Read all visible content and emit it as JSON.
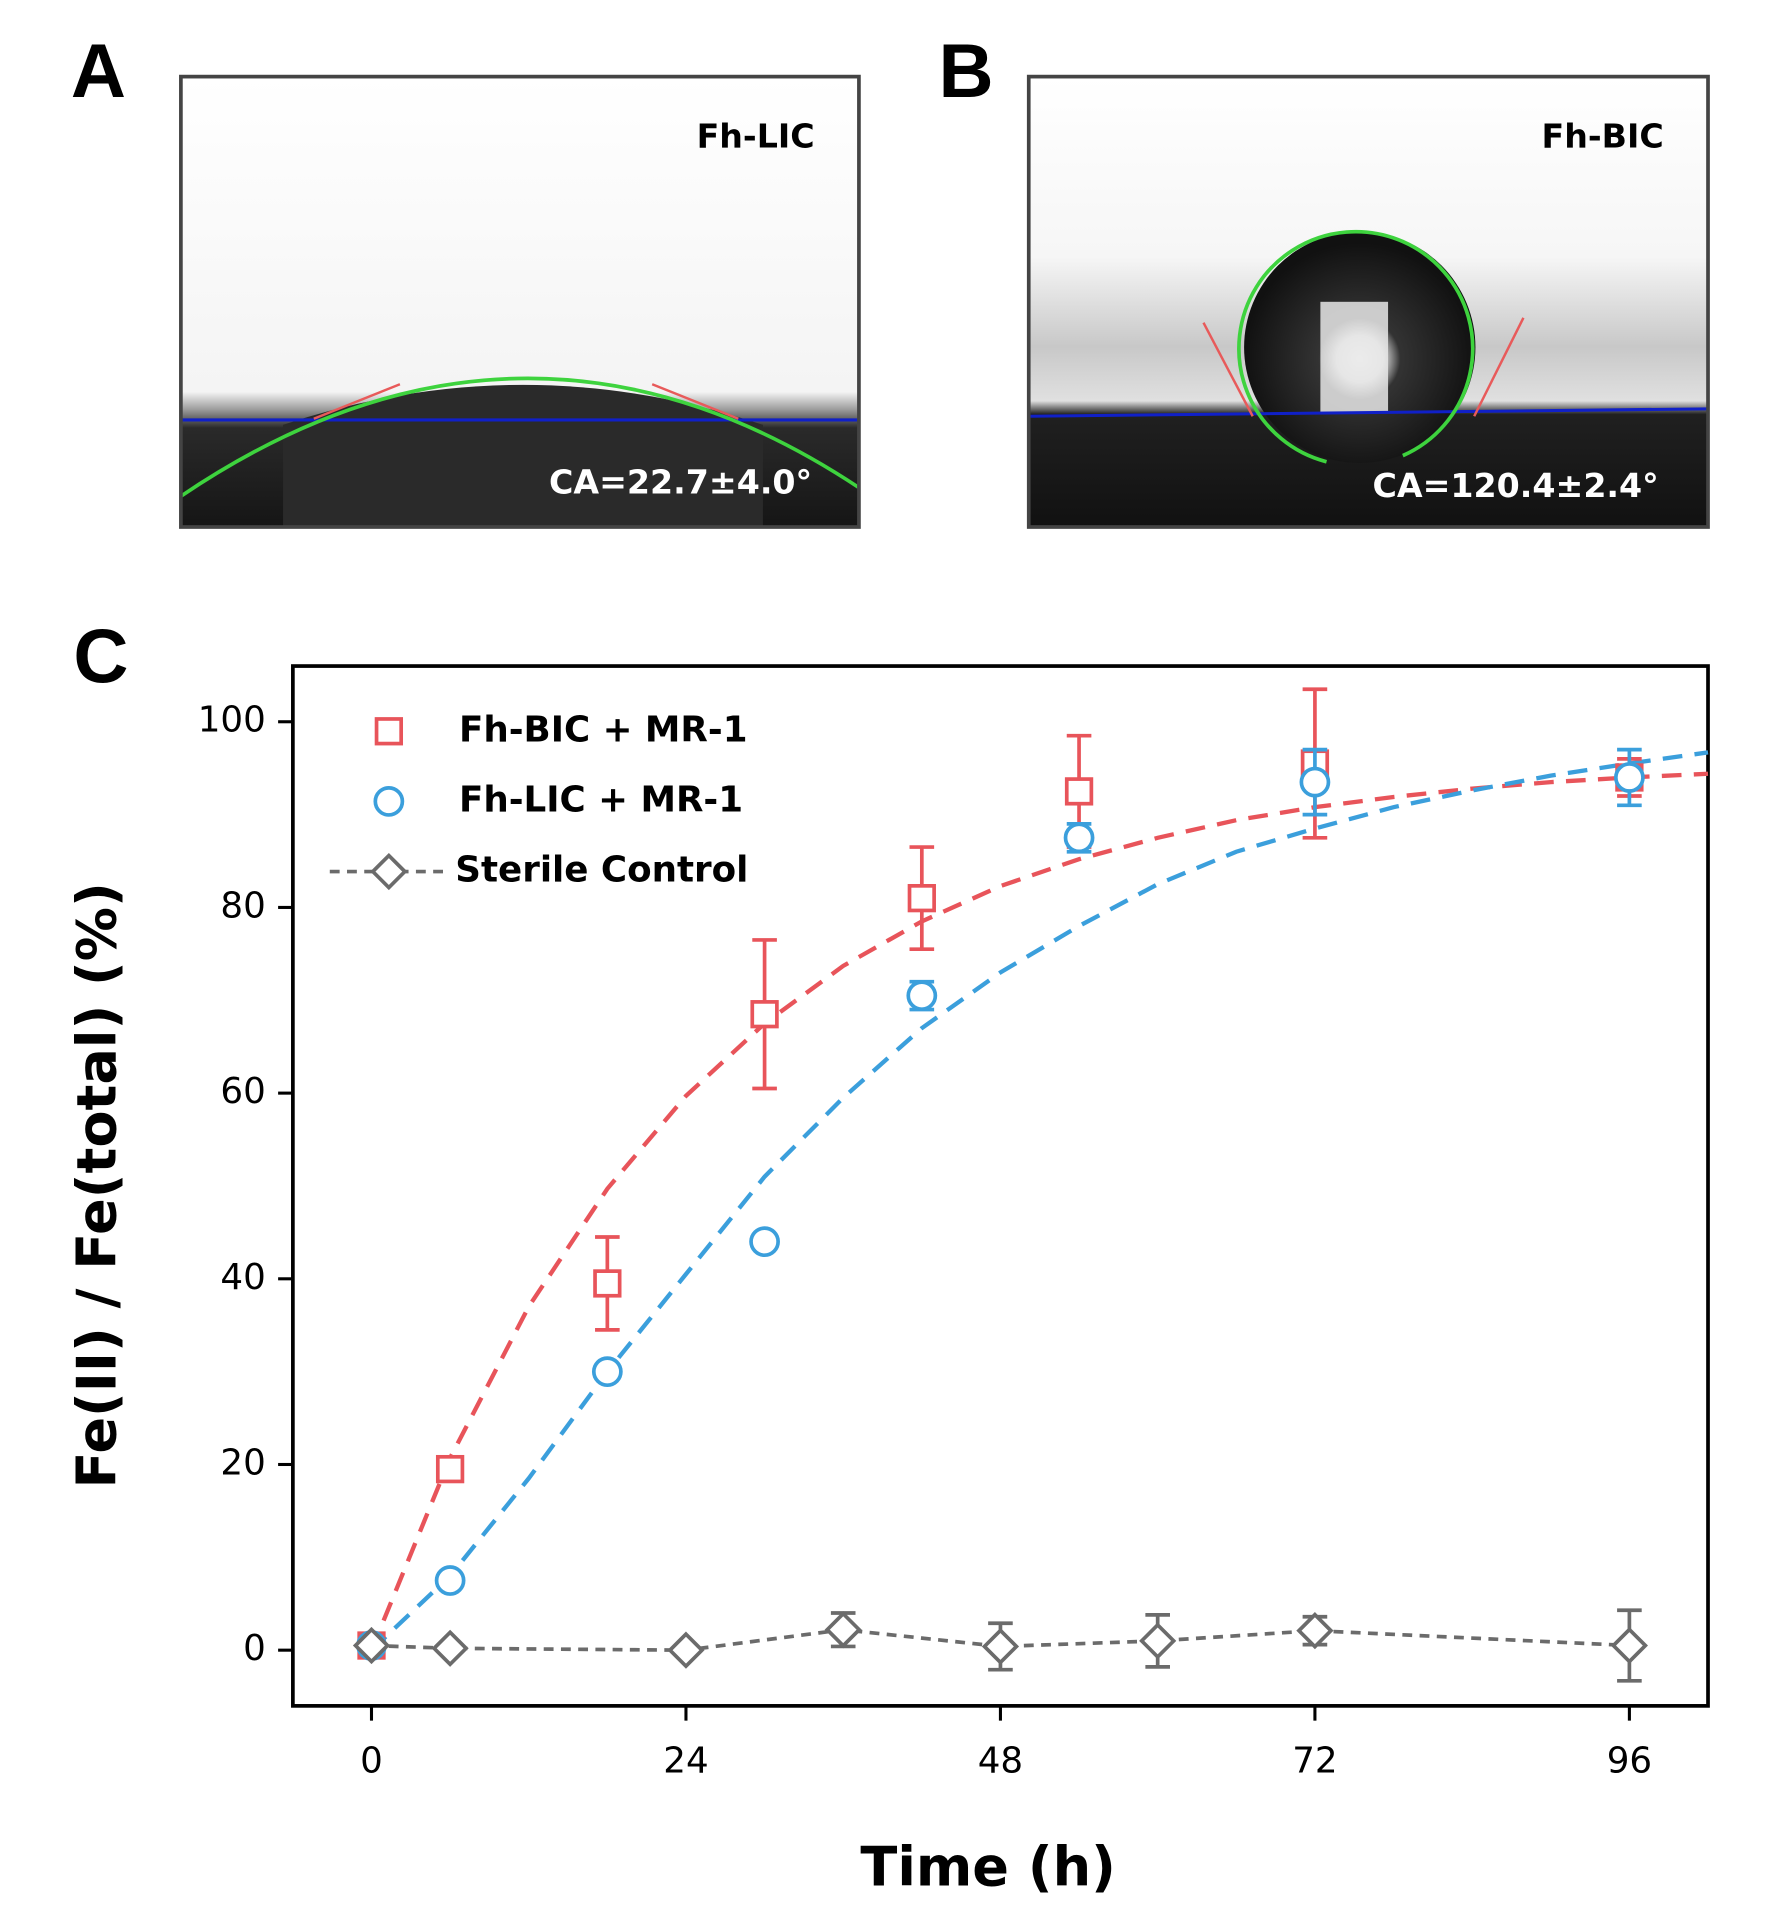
{
  "panels": [
    {
      "letter": "A",
      "label": "Fh-LIC",
      "annotation": "CA=22.7±4.0°"
    },
    {
      "letter": "B",
      "label": "Fh-BIC",
      "annotation": "CA=120.4±2.4°"
    }
  ],
  "chart_data": {
    "type": "scatter",
    "letter": "C",
    "x_label": "Time (h)",
    "y_label": "Fe(II) / Fe(total) (%)",
    "xlim": [
      -6,
      102
    ],
    "ylim": [
      -6,
      106
    ],
    "xticks": [
      0,
      24,
      48,
      72,
      96
    ],
    "yticks": [
      0,
      20,
      40,
      60,
      80,
      100
    ],
    "series": [
      {
        "name": "Fh-BIC + MR-1",
        "color": "#e8545a",
        "marker": "square",
        "x": [
          0,
          6,
          18,
          30,
          42,
          54,
          72,
          96
        ],
        "values": [
          0.5,
          19.5,
          39.5,
          68.5,
          81,
          92.5,
          95.5,
          94
        ],
        "errors": [
          0.5,
          1,
          5,
          8,
          5.5,
          6,
          8,
          2
        ],
        "fit": {
          "x": [
            0,
            6,
            12,
            18,
            24,
            30,
            36,
            42,
            48,
            54,
            60,
            66,
            72,
            78,
            84,
            90,
            96,
            102
          ],
          "values": [
            0,
            20.7,
            37,
            49.7,
            59.7,
            67.5,
            73.7,
            78.5,
            82.3,
            85.2,
            87.5,
            89.4,
            90.8,
            91.9,
            92.8,
            93.5,
            94,
            94.4
          ]
        }
      },
      {
        "name": "Fh-LIC + MR-1",
        "color": "#3b9fdc",
        "marker": "circle",
        "x": [
          0,
          6,
          18,
          30,
          42,
          54,
          72,
          96
        ],
        "values": [
          0.5,
          7.5,
          30,
          44,
          70.5,
          87.5,
          93.5,
          94
        ],
        "errors": [
          0.5,
          0.5,
          0.5,
          0.5,
          1.5,
          1.5,
          3.5,
          3
        ],
        "fit": {
          "x": [
            0,
            6,
            12,
            18,
            24,
            30,
            36,
            42,
            48,
            54,
            60,
            66,
            72,
            78,
            84,
            90,
            96,
            102
          ],
          "values": [
            0,
            8,
            18.5,
            30,
            40.5,
            51,
            59.5,
            67,
            73,
            78,
            82.5,
            86,
            88.5,
            90.8,
            92.6,
            94.2,
            95.5,
            96.7
          ]
        }
      },
      {
        "name": "Sterile Control",
        "color": "#6b6b6b",
        "marker": "diamond",
        "linestyle": "dotted",
        "x": [
          0,
          6,
          24,
          36,
          48,
          60,
          72,
          96
        ],
        "values": [
          0.5,
          0.2,
          0,
          2.2,
          0.4,
          1,
          2.1,
          0.5
        ],
        "errors": [
          0.5,
          0.3,
          0.3,
          1.8,
          2.5,
          2.8,
          1.5,
          3.8
        ]
      }
    ]
  }
}
